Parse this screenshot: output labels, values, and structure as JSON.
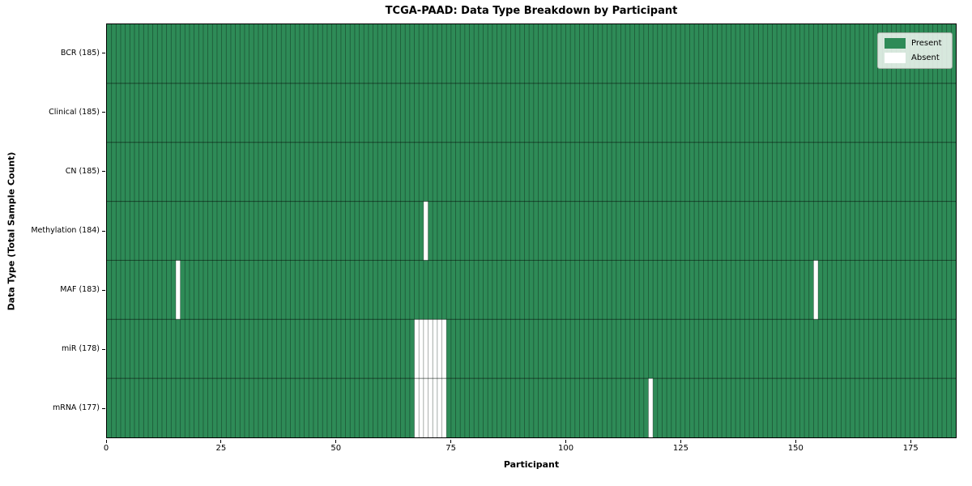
{
  "figure": {
    "kind": "presence-matrix-chart"
  },
  "chart_data": {
    "type": "heatmap",
    "title": "TCGA-PAAD: Data Type Breakdown by Participant",
    "xlabel": "Participant",
    "ylabel": "Data Type (Total Sample Count)",
    "n_participants": 185,
    "x_range": [
      0,
      185
    ],
    "x_ticks": [
      0,
      25,
      50,
      75,
      100,
      125,
      150,
      175
    ],
    "grid": true,
    "legend_position": "upper right",
    "colors": {
      "present": "#2e8b57",
      "absent": "#ffffff"
    },
    "legend": [
      {
        "label": "Present",
        "color": "#2e8b57"
      },
      {
        "label": "Absent",
        "color": "#ffffff"
      }
    ],
    "rows": [
      {
        "label": "BCR (185)",
        "data_type": "BCR",
        "total_samples": 185,
        "absent_participants": []
      },
      {
        "label": "Clinical (185)",
        "data_type": "Clinical",
        "total_samples": 185,
        "absent_participants": []
      },
      {
        "label": "CN (185)",
        "data_type": "CN",
        "total_samples": 185,
        "absent_participants": []
      },
      {
        "label": "Methylation (184)",
        "data_type": "Methylation",
        "total_samples": 184,
        "absent_participants": [
          69
        ]
      },
      {
        "label": "MAF (183)",
        "data_type": "MAF",
        "total_samples": 183,
        "absent_participants": [
          15,
          154
        ]
      },
      {
        "label": "miR (178)",
        "data_type": "miR",
        "total_samples": 178,
        "absent_participants": [
          67,
          68,
          69,
          70,
          71,
          72,
          73
        ]
      },
      {
        "label": "mRNA (177)",
        "data_type": "mRNA",
        "total_samples": 177,
        "absent_participants": [
          67,
          68,
          69,
          70,
          71,
          72,
          73,
          118
        ]
      }
    ]
  }
}
